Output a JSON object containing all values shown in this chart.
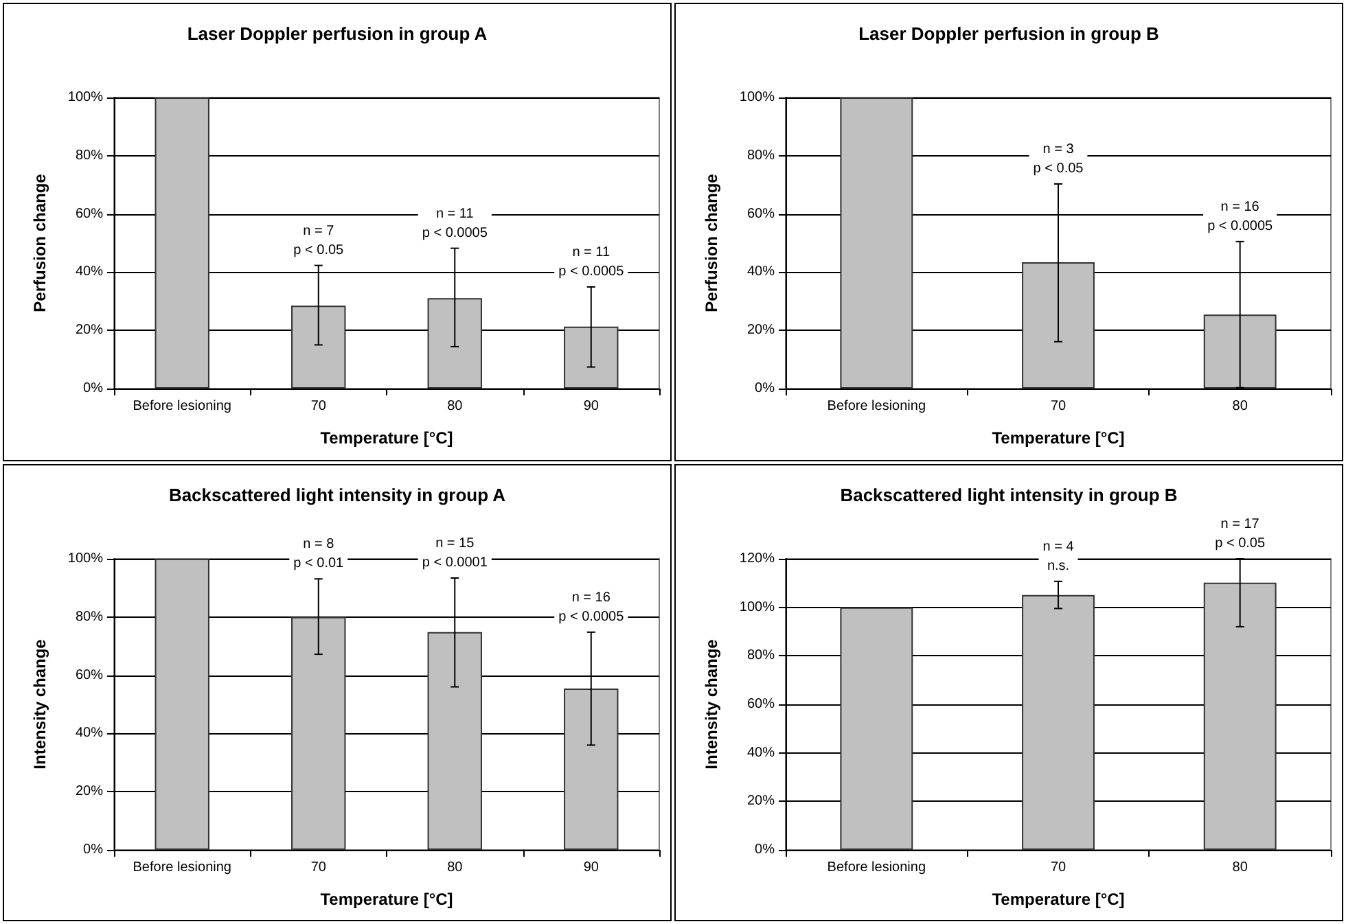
{
  "chart_data": [
    {
      "type": "bar",
      "title": "Laser Doppler perfusion in group A",
      "xlabel": "Temperature [°C]",
      "ylabel": "Perfusion change",
      "categories": [
        "Before lesioning",
        "70",
        "80",
        "90"
      ],
      "values": [
        100,
        28.5,
        31.1,
        21.3
      ],
      "errors": [
        null,
        [
          15,
          42.3
        ],
        [
          14.4,
          48.2
        ],
        [
          7.4,
          34.9
        ]
      ],
      "color": "#c0c0c0",
      "ylim": [
        0,
        100
      ],
      "yticks": [
        {
          "value": 0,
          "label": "0%"
        },
        {
          "value": 20,
          "label": "20%"
        },
        {
          "value": 40,
          "label": "40%"
        },
        {
          "value": 60,
          "label": "60%"
        },
        {
          "value": 80,
          "label": "80%"
        },
        {
          "value": 100,
          "label": "100%"
        }
      ],
      "grid": "y",
      "annotations": [
        {
          "text": "n = 7\np < 0.05",
          "x": "70",
          "y": 42.3
        },
        {
          "text": "n = 11\np < 0.0005",
          "x": "80",
          "y": 48.2
        },
        {
          "text": "n = 11\np < 0.0005",
          "x": "90",
          "y": 34.9
        }
      ]
    },
    {
      "type": "bar",
      "title": "Laser Doppler perfusion in group B",
      "xlabel": "Temperature [°C]",
      "ylabel": "Perfusion change",
      "categories": [
        "Before lesioning",
        "70",
        "80"
      ],
      "values": [
        100,
        43.4,
        25.4
      ],
      "errors": [
        null,
        [
          16.1,
          70.3
        ],
        [
          0.3,
          50.5
        ]
      ],
      "color": "#c0c0c0",
      "ylim": [
        0,
        100
      ],
      "yticks": [
        {
          "value": 0,
          "label": "0%"
        },
        {
          "value": 20,
          "label": "20%"
        },
        {
          "value": 40,
          "label": "40%"
        },
        {
          "value": 60,
          "label": "60%"
        },
        {
          "value": 80,
          "label": "80%"
        },
        {
          "value": 100,
          "label": "100%"
        }
      ],
      "grid": "y",
      "annotations": [
        {
          "text": "n = 3\np < 0.05",
          "x": "70",
          "y": 70.3
        },
        {
          "text": "n = 16\np < 0.0005",
          "x": "80",
          "y": 50.5
        }
      ]
    },
    {
      "type": "bar",
      "title": "Backscattered light intensity in group A",
      "xlabel": "Temperature [°C]",
      "ylabel": "Intensity change",
      "categories": [
        "Before lesioning",
        "70",
        "80",
        "90"
      ],
      "values": [
        100,
        80,
        74.8,
        55.4
      ],
      "errors": [
        null,
        [
          67.2,
          93.1
        ],
        [
          56,
          93.4
        ],
        [
          36,
          74.8
        ]
      ],
      "color": "#c0c0c0",
      "ylim": [
        0,
        100
      ],
      "yticks": [
        {
          "value": 0,
          "label": "0%"
        },
        {
          "value": 20,
          "label": "20%"
        },
        {
          "value": 40,
          "label": "40%"
        },
        {
          "value": 60,
          "label": "60%"
        },
        {
          "value": 80,
          "label": "80%"
        },
        {
          "value": 100,
          "label": "100%"
        }
      ],
      "grid": "y",
      "annotations": [
        {
          "text": "n = 8\np < 0.01",
          "x": "70",
          "y": 93.1
        },
        {
          "text": "n = 15\np < 0.0001",
          "x": "80",
          "y": 93.4
        },
        {
          "text": "n = 16\np < 0.0005",
          "x": "90",
          "y": 74.8
        }
      ]
    },
    {
      "type": "bar",
      "title": "Backscattered light intensity in group B",
      "xlabel": "Temperature [°C]",
      "ylabel": "Intensity change",
      "categories": [
        "Before lesioning",
        "70",
        "80"
      ],
      "values": [
        100,
        105.1,
        110.2
      ],
      "errors": [
        null,
        [
          99.5,
          110.7
        ],
        [
          92,
          120
        ]
      ],
      "color": "#c0c0c0",
      "ylim": [
        0,
        120
      ],
      "yticks": [
        {
          "value": 0,
          "label": "0%"
        },
        {
          "value": 20,
          "label": "20%"
        },
        {
          "value": 40,
          "label": "40%"
        },
        {
          "value": 60,
          "label": "60%"
        },
        {
          "value": 80,
          "label": "80%"
        },
        {
          "value": 100,
          "label": "100%"
        },
        {
          "value": 120,
          "label": "120%"
        }
      ],
      "grid": "y",
      "annotations": [
        {
          "text": "n = 4\nn.s.",
          "x": "70",
          "y": 110.7
        },
        {
          "text": "n = 17\np < 0.05",
          "x": "80",
          "y": 120
        }
      ]
    }
  ]
}
